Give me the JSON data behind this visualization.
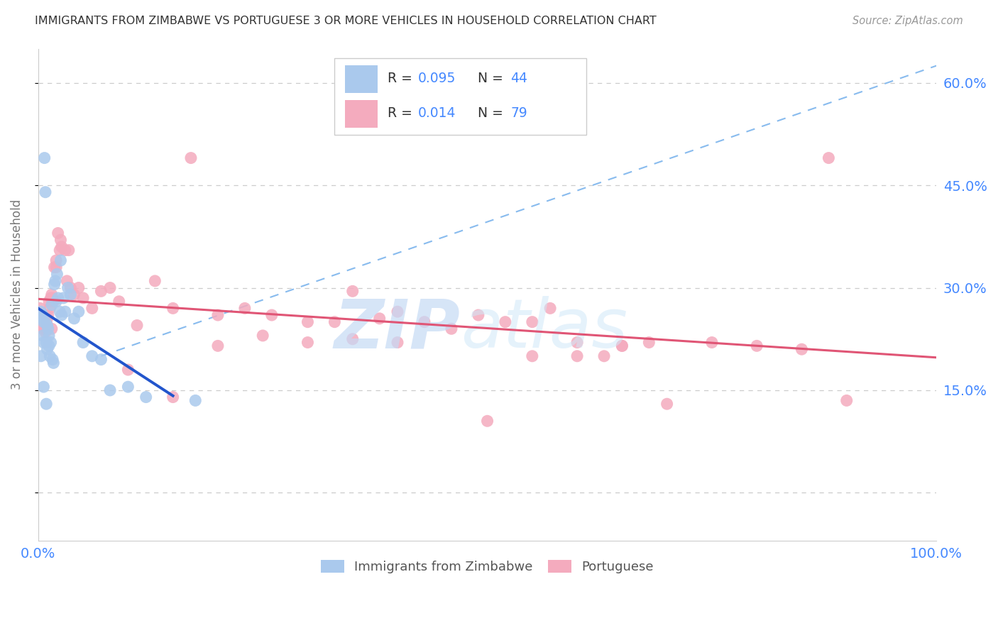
{
  "title": "IMMIGRANTS FROM ZIMBABWE VS PORTUGUESE 3 OR MORE VEHICLES IN HOUSEHOLD CORRELATION CHART",
  "source": "Source: ZipAtlas.com",
  "ylabel": "3 or more Vehicles in Household",
  "r1": "0.095",
  "n1": "44",
  "r2": "0.014",
  "n2": "79",
  "legend_label1": "Immigrants from Zimbabwe",
  "legend_label2": "Portuguese",
  "blue_fill": "#aac9ed",
  "pink_fill": "#f4abbe",
  "blue_line": "#2255cc",
  "pink_line": "#e05575",
  "dash_line": "#88bbee",
  "xlim": [
    0.0,
    1.0
  ],
  "ylim": [
    -0.07,
    0.65
  ],
  "yticks": [
    0.0,
    0.15,
    0.3,
    0.45,
    0.6
  ],
  "ytick_labels": [
    "",
    "15.0%",
    "30.0%",
    "45.0%",
    "60.0%"
  ],
  "xtick_labels": [
    "0.0%",
    "100.0%"
  ],
  "grid_color": "#cccccc",
  "title_color": "#333333",
  "source_color": "#999999",
  "axis_label_color": "#777777",
  "tick_color": "#4488ff",
  "background": "#ffffff",
  "blue_x": [
    0.003,
    0.004,
    0.005,
    0.005,
    0.006,
    0.006,
    0.007,
    0.008,
    0.008,
    0.009,
    0.01,
    0.01,
    0.011,
    0.012,
    0.012,
    0.013,
    0.014,
    0.015,
    0.016,
    0.017,
    0.018,
    0.019,
    0.02,
    0.021,
    0.022,
    0.024,
    0.025,
    0.026,
    0.028,
    0.03,
    0.033,
    0.036,
    0.04,
    0.045,
    0.05,
    0.06,
    0.07,
    0.08,
    0.1,
    0.12,
    0.003,
    0.006,
    0.009,
    0.175
  ],
  "blue_y": [
    0.265,
    0.255,
    0.26,
    0.23,
    0.25,
    0.22,
    0.49,
    0.44,
    0.25,
    0.22,
    0.245,
    0.21,
    0.24,
    0.23,
    0.215,
    0.2,
    0.22,
    0.275,
    0.195,
    0.19,
    0.305,
    0.31,
    0.28,
    0.32,
    0.285,
    0.265,
    0.34,
    0.26,
    0.285,
    0.265,
    0.3,
    0.29,
    0.255,
    0.265,
    0.22,
    0.2,
    0.195,
    0.15,
    0.155,
    0.14,
    0.2,
    0.155,
    0.13,
    0.135
  ],
  "pink_x": [
    0.002,
    0.003,
    0.004,
    0.005,
    0.005,
    0.006,
    0.006,
    0.007,
    0.007,
    0.008,
    0.008,
    0.009,
    0.01,
    0.01,
    0.011,
    0.012,
    0.013,
    0.014,
    0.015,
    0.015,
    0.016,
    0.017,
    0.018,
    0.02,
    0.02,
    0.022,
    0.024,
    0.025,
    0.026,
    0.03,
    0.032,
    0.034,
    0.036,
    0.04,
    0.045,
    0.05,
    0.06,
    0.07,
    0.08,
    0.09,
    0.11,
    0.13,
    0.15,
    0.17,
    0.2,
    0.23,
    0.26,
    0.3,
    0.33,
    0.35,
    0.38,
    0.4,
    0.43,
    0.46,
    0.49,
    0.52,
    0.55,
    0.57,
    0.6,
    0.63,
    0.65,
    0.68,
    0.1,
    0.15,
    0.2,
    0.25,
    0.3,
    0.35,
    0.4,
    0.5,
    0.55,
    0.6,
    0.65,
    0.7,
    0.75,
    0.8,
    0.85,
    0.88,
    0.9
  ],
  "pink_y": [
    0.27,
    0.255,
    0.26,
    0.25,
    0.24,
    0.255,
    0.245,
    0.25,
    0.24,
    0.245,
    0.235,
    0.24,
    0.255,
    0.245,
    0.26,
    0.28,
    0.27,
    0.285,
    0.29,
    0.24,
    0.285,
    0.28,
    0.33,
    0.33,
    0.34,
    0.38,
    0.355,
    0.37,
    0.36,
    0.355,
    0.31,
    0.355,
    0.3,
    0.29,
    0.3,
    0.285,
    0.27,
    0.295,
    0.3,
    0.28,
    0.245,
    0.31,
    0.27,
    0.49,
    0.26,
    0.27,
    0.26,
    0.25,
    0.25,
    0.295,
    0.255,
    0.265,
    0.25,
    0.24,
    0.26,
    0.25,
    0.25,
    0.27,
    0.2,
    0.2,
    0.215,
    0.22,
    0.18,
    0.14,
    0.215,
    0.23,
    0.22,
    0.225,
    0.22,
    0.105,
    0.2,
    0.22,
    0.215,
    0.13,
    0.22,
    0.215,
    0.21,
    0.49,
    0.135
  ]
}
